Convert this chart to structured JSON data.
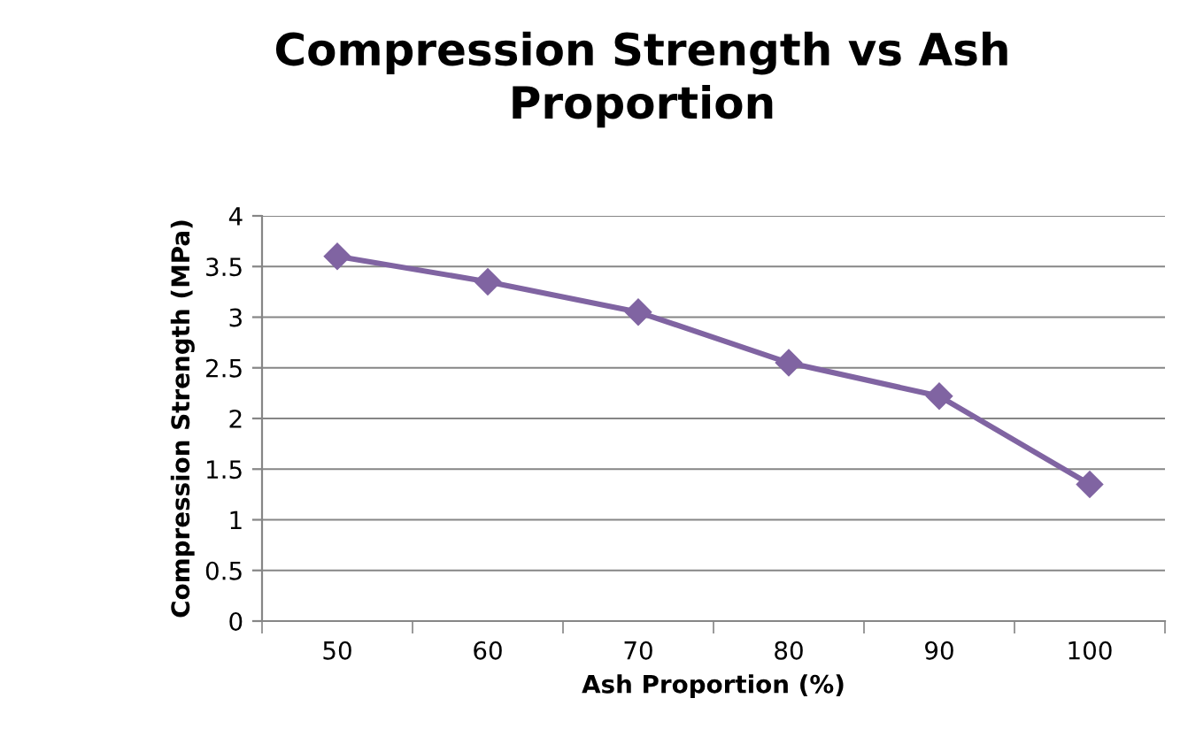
{
  "chart_data": {
    "type": "line",
    "title": "Compression Strength vs Ash Proportion",
    "xlabel": "Ash Proportion (%)",
    "ylabel": "Compression Strength (MPa)",
    "categories": [
      "50",
      "60",
      "70",
      "80",
      "90",
      "100"
    ],
    "series": [
      {
        "color": "#8064a2",
        "values": [
          3.6,
          3.35,
          3.05,
          2.55,
          2.22,
          1.35
        ]
      }
    ],
    "ylim": [
      0,
      4
    ],
    "yticks": [
      0,
      0.5,
      1,
      1.5,
      2,
      2.5,
      3,
      3.5,
      4
    ],
    "grid": "y",
    "marker": "diamond",
    "line_style": "solid"
  }
}
